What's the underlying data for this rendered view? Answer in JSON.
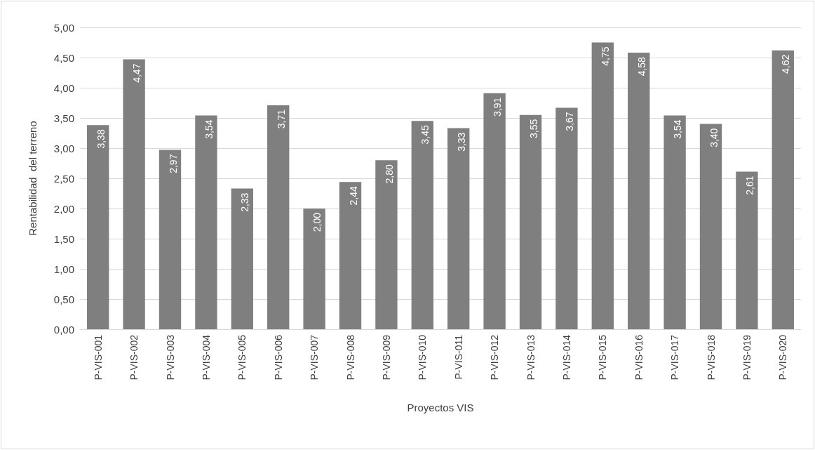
{
  "chart_data": {
    "type": "bar",
    "xlabel": "Proyectos VIS",
    "ylabel": "Rentabilidad  del terreno",
    "categories": [
      "P-VIS-001",
      "P-VIS-002",
      "P-VIS-003",
      "P-VIS-004",
      "P-VIS-005",
      "P-VIS-006",
      "P-VIS-007",
      "P-VIS-008",
      "P-VIS-009",
      "P-VIS-010",
      "P-VIS-011",
      "P-VIS-012",
      "P-VIS-013",
      "P-VIS-014",
      "P-VIS-015",
      "P-VIS-016",
      "P-VIS-017",
      "P-VIS-018",
      "P-VIS-019",
      "P-VIS-020"
    ],
    "values": [
      3.38,
      4.47,
      2.97,
      3.54,
      2.33,
      3.71,
      2.0,
      2.44,
      2.8,
      3.45,
      3.33,
      3.91,
      3.55,
      3.67,
      4.75,
      4.58,
      3.54,
      3.4,
      2.61,
      4.62
    ],
    "value_labels": [
      "3,38",
      "4,47",
      "2,97",
      "3,54",
      "2,33",
      "3,71",
      "2,00",
      "2,44",
      "2,80",
      "3,45",
      "3,33",
      "3,91",
      "3,55",
      "3,67",
      "4,75",
      "4,58",
      "3,54",
      "3,40",
      "2,61",
      "4,62"
    ],
    "color": "#7f7f7f",
    "ylim": [
      0,
      5
    ],
    "yticks": [
      {
        "value": 0,
        "label": "0,00"
      },
      {
        "value": 0.5,
        "label": "0,50"
      },
      {
        "value": 1,
        "label": "1,00"
      },
      {
        "value": 1.5,
        "label": "1,50"
      },
      {
        "value": 2,
        "label": "2,00"
      },
      {
        "value": 2.5,
        "label": "2,50"
      },
      {
        "value": 3,
        "label": "3,00"
      },
      {
        "value": 3.5,
        "label": "3,50"
      },
      {
        "value": 4,
        "label": "4,00"
      },
      {
        "value": 4.5,
        "label": "4,50"
      },
      {
        "value": 5,
        "label": "5,00"
      }
    ],
    "grid": "y"
  }
}
